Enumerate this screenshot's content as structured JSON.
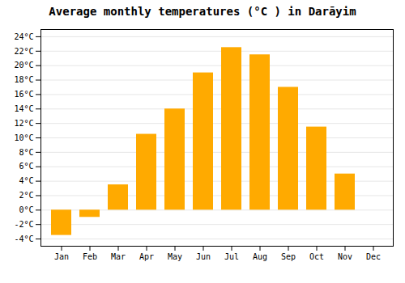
{
  "chart_data": {
    "type": "bar",
    "title": "Average monthly temperatures (°C ) in Darāyim",
    "categories": [
      "Jan",
      "Feb",
      "Mar",
      "Apr",
      "May",
      "Jun",
      "Jul",
      "Aug",
      "Sep",
      "Oct",
      "Nov",
      "Dec"
    ],
    "values": [
      -3.5,
      -1.0,
      3.5,
      10.5,
      14.0,
      19.0,
      22.5,
      21.5,
      17.0,
      11.5,
      5.0,
      0.0
    ],
    "color": "#FFAA00",
    "ylim": [
      -5,
      25
    ],
    "yticks": [
      {
        "value": -4,
        "label": "-4°C"
      },
      {
        "value": -2,
        "label": "-2°C"
      },
      {
        "value": 0,
        "label": "0°C"
      },
      {
        "value": 2,
        "label": "2°C"
      },
      {
        "value": 4,
        "label": "4°C"
      },
      {
        "value": 6,
        "label": "6°C"
      },
      {
        "value": 8,
        "label": "8°C"
      },
      {
        "value": 10,
        "label": "10°C"
      },
      {
        "value": 12,
        "label": "12°C"
      },
      {
        "value": 14,
        "label": "14°C"
      },
      {
        "value": 16,
        "label": "16°C"
      },
      {
        "value": 18,
        "label": "18°C"
      },
      {
        "value": 20,
        "label": "20°C"
      },
      {
        "value": 22,
        "label": "22°C"
      },
      {
        "value": 24,
        "label": "24°C"
      }
    ],
    "grid": true
  }
}
